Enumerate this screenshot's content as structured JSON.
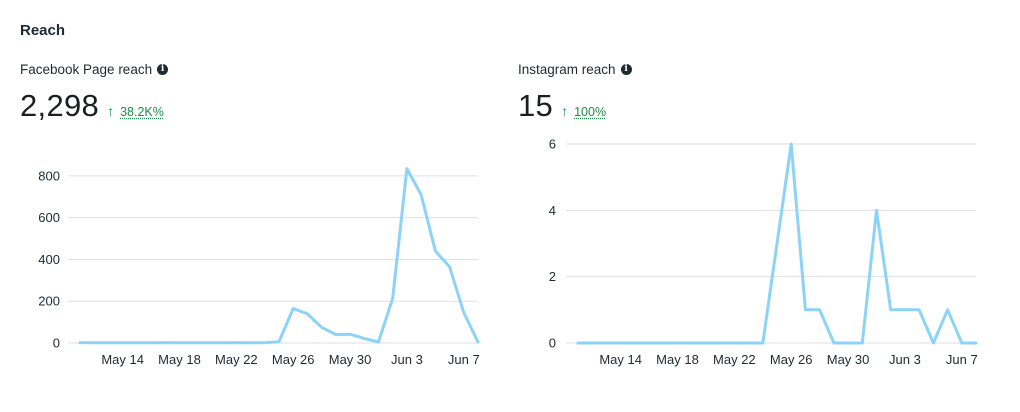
{
  "section": {
    "title": "Reach"
  },
  "colors": {
    "line": "#8dd3f7",
    "grid": "#dddfe2",
    "positive": "#1e8b4d"
  },
  "icons": {
    "info": "info-icon",
    "up": "arrow-up-icon"
  },
  "panels": [
    {
      "label": "Facebook Page reach",
      "value": "2,298",
      "delta": "38.2K%",
      "info_glyph": "i",
      "arrow_glyph": "↑"
    },
    {
      "label": "Instagram reach",
      "value": "15",
      "delta": "100%",
      "info_glyph": "i",
      "arrow_glyph": "↑"
    }
  ],
  "chart_data": [
    {
      "type": "line",
      "title": "Facebook Page reach",
      "x": [
        "May 11",
        "May 12",
        "May 13",
        "May 14",
        "May 15",
        "May 16",
        "May 17",
        "May 18",
        "May 19",
        "May 20",
        "May 21",
        "May 22",
        "May 23",
        "May 24",
        "May 25",
        "May 26",
        "May 27",
        "May 28",
        "May 29",
        "May 30",
        "May 31",
        "Jun 1",
        "Jun 2",
        "Jun 3",
        "Jun 4",
        "Jun 5",
        "Jun 6",
        "Jun 7",
        "Jun 8"
      ],
      "series": [
        {
          "name": "Facebook Page reach",
          "values": [
            2,
            1,
            1,
            1,
            1,
            1,
            2,
            1,
            1,
            1,
            1,
            2,
            1,
            1,
            6,
            165,
            140,
            75,
            40,
            42,
            22,
            5,
            215,
            835,
            710,
            440,
            365,
            145,
            5
          ]
        }
      ],
      "tick_labels": [
        "May 14",
        "May 18",
        "May 22",
        "May 26",
        "May 30",
        "Jun 3",
        "Jun 7"
      ],
      "tick_indices": [
        3,
        7,
        11,
        15,
        19,
        23,
        27
      ],
      "yticks": [
        0,
        200,
        400,
        600,
        800
      ],
      "ylim": [
        0,
        900
      ],
      "xlabel": "",
      "ylabel": "",
      "grid": true
    },
    {
      "type": "line",
      "title": "Instagram reach",
      "x": [
        "May 11",
        "May 12",
        "May 13",
        "May 14",
        "May 15",
        "May 16",
        "May 17",
        "May 18",
        "May 19",
        "May 20",
        "May 21",
        "May 22",
        "May 23",
        "May 24",
        "May 25",
        "May 26",
        "May 27",
        "May 28",
        "May 29",
        "May 30",
        "May 31",
        "Jun 1",
        "Jun 2",
        "Jun 3",
        "Jun 4",
        "Jun 5",
        "Jun 6",
        "Jun 7",
        "Jun 8"
      ],
      "series": [
        {
          "name": "Instagram reach",
          "values": [
            0,
            0,
            0,
            0,
            0,
            0,
            0,
            0,
            0,
            0,
            0,
            0,
            0,
            0,
            3,
            6,
            1,
            1,
            0,
            0,
            0,
            4,
            1,
            1,
            1,
            0,
            1,
            0,
            0
          ]
        }
      ],
      "tick_labels": [
        "May 14",
        "May 18",
        "May 22",
        "May 26",
        "May 30",
        "Jun 3",
        "Jun 7"
      ],
      "tick_indices": [
        3,
        7,
        11,
        15,
        19,
        23,
        27
      ],
      "yticks": [
        0,
        2,
        4,
        6
      ],
      "ylim": [
        0,
        6
      ],
      "xlabel": "",
      "ylabel": "",
      "grid": true
    }
  ]
}
